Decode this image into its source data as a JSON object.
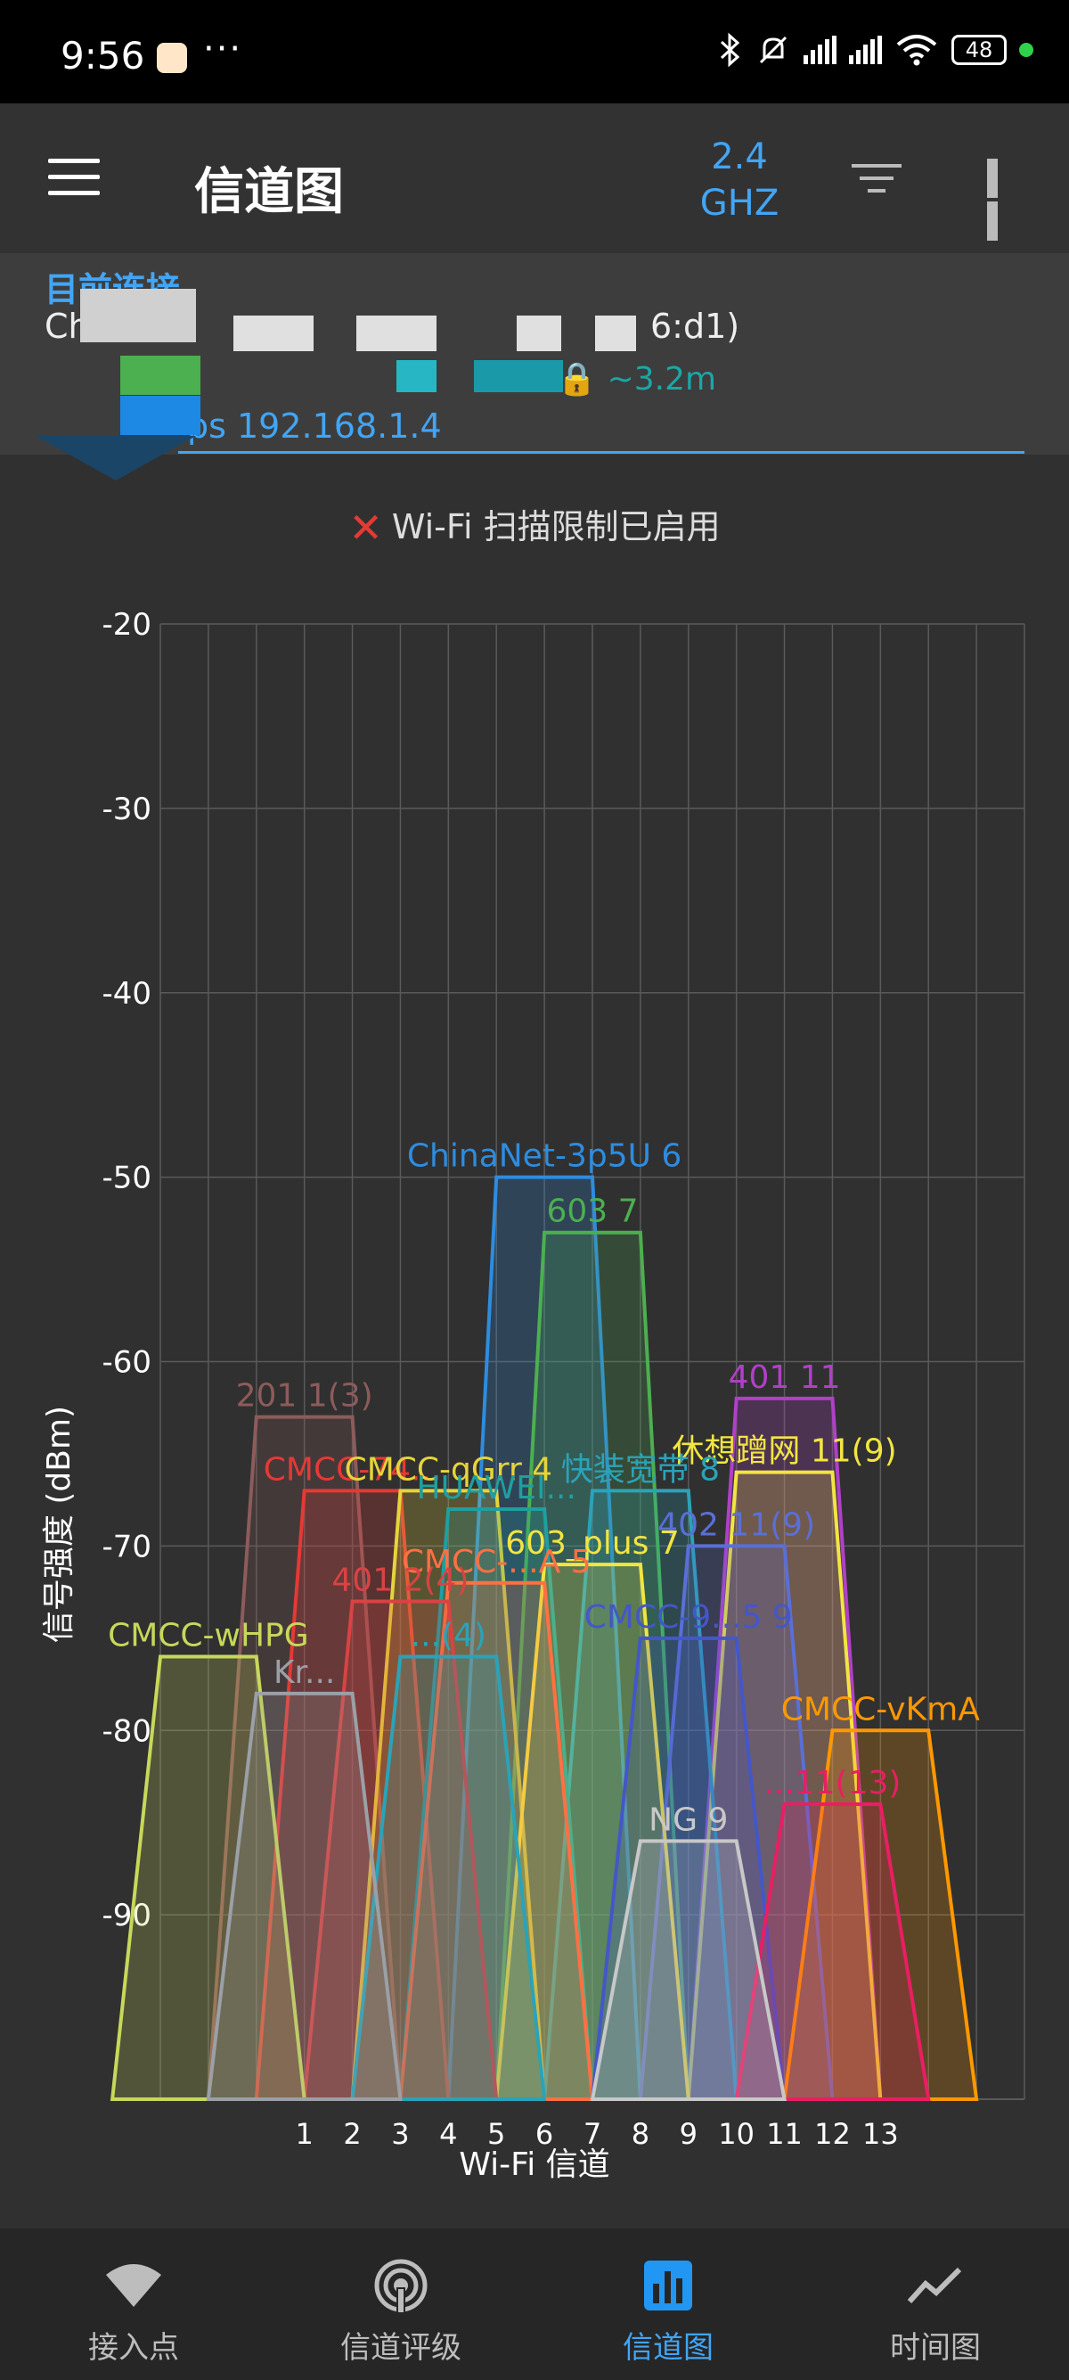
{
  "status_bar": {
    "time": "9:56",
    "dots": "···",
    "battery": "48",
    "icons": [
      "bluetooth-icon",
      "mute-icon",
      "hd-signal-icon",
      "hd-signal-icon",
      "wifi-icon"
    ]
  },
  "app_bar": {
    "title": "信道图",
    "band_line1": "2.4",
    "band_line2": "GHZ"
  },
  "connection": {
    "label": "目前连接",
    "ssid": "China",
    "bssid": "6:d1)",
    "detail": "GHz 🔒 ~3.2m",
    "ip": "ps 192.168.1.4"
  },
  "scan_warning": "Wi-Fi 扫描限制已启用",
  "chart_data": {
    "type": "area",
    "xlabel": "Wi-Fi 信道",
    "ylabel": "信号强度 (dBm)",
    "ylim": [
      -100,
      -20
    ],
    "yticks": [
      "-20",
      "-30",
      "-40",
      "-50",
      "-60",
      "-70",
      "-80",
      "-90"
    ],
    "xlim": [
      -2,
      16
    ],
    "xticks": [
      "1",
      "2",
      "3",
      "4",
      "5",
      "6",
      "7",
      "8",
      "9",
      "10",
      "11",
      "12",
      "13"
    ],
    "grid": true,
    "series": [
      {
        "name": "ChinaNet-3p5U 6",
        "channel": 6,
        "dbm": -50,
        "color": "#2e8ce0"
      },
      {
        "name": "603 7",
        "channel": 7,
        "dbm": -53,
        "color": "#4caf50"
      },
      {
        "name": "401 11",
        "channel": 11,
        "dbm": -62,
        "color": "#b040c8"
      },
      {
        "name": "201 1(3)",
        "channel": 1,
        "dbm": -63,
        "color": "#8d5b5b"
      },
      {
        "name": "休想蹭网 11(9)",
        "channel": 11,
        "dbm": -66,
        "color": "#f2e542"
      },
      {
        "name": "CMCC-74...",
        "channel": 2,
        "dbm": -67,
        "color": "#e53935"
      },
      {
        "name": "CMCC-qGrr 4",
        "channel": 4,
        "dbm": -67,
        "color": "#e6d43a"
      },
      {
        "name": "快装宽带 8",
        "channel": 8,
        "dbm": -67,
        "color": "#2aa3b8"
      },
      {
        "name": "HUAWEI...",
        "channel": 5,
        "dbm": -68,
        "color": "#1f9f9f"
      },
      {
        "name": "402 11(9)",
        "channel": 10,
        "dbm": -70,
        "color": "#5a6fd6"
      },
      {
        "name": "603_plus 7",
        "channel": 7,
        "dbm": -71,
        "color": "#f2e542"
      },
      {
        "name": "CMCC-...A 5",
        "channel": 5,
        "dbm": -72,
        "color": "#ff7043"
      },
      {
        "name": "401 2(4)",
        "channel": 3,
        "dbm": -73,
        "color": "#d84343"
      },
      {
        "name": "CMCC-9...5 9",
        "channel": 9,
        "dbm": -75,
        "color": "#4457c8"
      },
      {
        "name": "CMCC-wHPG",
        "channel": -1,
        "dbm": -76,
        "color": "#c7d85a"
      },
      {
        "name": "...(4)",
        "channel": 4,
        "dbm": -76,
        "color": "#2aa3b8"
      },
      {
        "name": "Kr...",
        "channel": 1,
        "dbm": -78,
        "color": "#9aa0a6"
      },
      {
        "name": "CMCC-vKmA",
        "channel": 13,
        "dbm": -80,
        "color": "#ff9800"
      },
      {
        "name": "...11(13)",
        "channel": 12,
        "dbm": -84,
        "color": "#e91e63"
      },
      {
        "name": "NG 9",
        "channel": 9,
        "dbm": -86,
        "color": "#c8c8c8"
      }
    ]
  },
  "nav": {
    "items": [
      {
        "label": "接入点",
        "icon": "wifi-icon"
      },
      {
        "label": "信道评级",
        "icon": "signal-rating-icon"
      },
      {
        "label": "信道图",
        "icon": "bar-chart-icon"
      },
      {
        "label": "时间图",
        "icon": "line-chart-icon"
      }
    ]
  }
}
